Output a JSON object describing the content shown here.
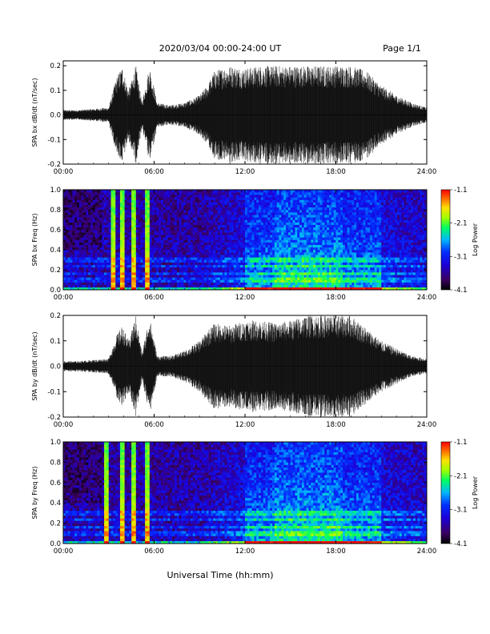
{
  "header": {
    "title": "2020/03/04  00:00-24:00 UT",
    "page": "Page 1/1"
  },
  "footer": {
    "xlabel": "Universal Time (hh:mm)"
  },
  "colors": {
    "trace": "#000000",
    "colormap": [
      "#000000",
      "#3a0060",
      "#1c00d8",
      "#0030ff",
      "#00b8ff",
      "#00ff60",
      "#a0ff00",
      "#ffe000",
      "#ff6000",
      "#ff0000"
    ]
  },
  "chart_data": [
    {
      "type": "line",
      "id": "bx-waveform",
      "ylabel": "SPA bx dB/dt (nT/sec)",
      "xlim": [
        0,
        24
      ],
      "ylim": [
        -0.2,
        0.22
      ],
      "xticks": [
        "00:00",
        "06:00",
        "12:00",
        "18:00",
        "24:00"
      ],
      "yticks": [
        "-0.2",
        "-0.1",
        "0.0",
        "0.1",
        "0.2"
      ],
      "ytick_values": [
        -0.2,
        -0.1,
        0.0,
        0.1,
        0.2
      ],
      "envelope": {
        "x": [
          0,
          1,
          2,
          3,
          3.5,
          3.9,
          4.3,
          4.8,
          5.2,
          5.7,
          6.2,
          7,
          8,
          9,
          9.5,
          10,
          11,
          12,
          13,
          14,
          15,
          16,
          17,
          18,
          19,
          20,
          21,
          22,
          23,
          24
        ],
        "amp": [
          0.02,
          0.02,
          0.025,
          0.03,
          0.15,
          0.2,
          0.1,
          0.2,
          0.05,
          0.2,
          0.05,
          0.04,
          0.05,
          0.08,
          0.12,
          0.18,
          0.2,
          0.19,
          0.2,
          0.2,
          0.2,
          0.2,
          0.2,
          0.2,
          0.2,
          0.18,
          0.12,
          0.08,
          0.05,
          0.03
        ]
      }
    },
    {
      "type": "heatmap",
      "id": "bx-spectrogram",
      "ylabel": "SPA bx Freq (Hz)",
      "colorbar_label": "Log Power",
      "xlim": [
        0,
        24
      ],
      "ylim": [
        0,
        1.0
      ],
      "xticks": [
        "00:00",
        "06:00",
        "12:00",
        "18:00",
        "24:00"
      ],
      "yticks": [
        "0.0",
        "0.2",
        "0.4",
        "0.6",
        "0.8",
        "1.0"
      ],
      "ytick_values": [
        0,
        0.2,
        0.4,
        0.6,
        0.8,
        1.0
      ],
      "clim": [
        -4.1,
        -1.1
      ],
      "cticks": [
        "-1.1",
        "-2.1",
        "-3.1",
        "-4.1"
      ],
      "cticks_values": [
        -1.1,
        -2.1,
        -3.1,
        -4.1
      ],
      "bursts": [
        3.3,
        3.9,
        4.6,
        5.6
      ],
      "lines_hz": [
        0.1,
        0.17,
        0.23,
        0.3
      ]
    },
    {
      "type": "line",
      "id": "by-waveform",
      "ylabel": "SPA by dB/dt (nT/sec)",
      "xlim": [
        0,
        24
      ],
      "ylim": [
        -0.2,
        0.2
      ],
      "xticks": [
        "00:00",
        "06:00",
        "12:00",
        "18:00",
        "24:00"
      ],
      "yticks": [
        "-0.2",
        "-0.1",
        "0.0",
        "0.1",
        "0.2"
      ],
      "ytick_values": [
        -0.2,
        -0.1,
        0.0,
        0.1,
        0.2
      ],
      "envelope": {
        "x": [
          0,
          1,
          2,
          3,
          3.5,
          3.9,
          4.3,
          4.8,
          5.2,
          5.7,
          6.2,
          7,
          8,
          9,
          9.5,
          10,
          11,
          12,
          13,
          14,
          15,
          16,
          17,
          18,
          19,
          20,
          21,
          22,
          23,
          24
        ],
        "amp": [
          0.02,
          0.02,
          0.025,
          0.03,
          0.12,
          0.16,
          0.1,
          0.2,
          0.05,
          0.2,
          0.04,
          0.04,
          0.06,
          0.1,
          0.14,
          0.17,
          0.16,
          0.18,
          0.18,
          0.17,
          0.18,
          0.2,
          0.2,
          0.2,
          0.2,
          0.15,
          0.1,
          0.07,
          0.04,
          0.03
        ]
      }
    },
    {
      "type": "heatmap",
      "id": "by-spectrogram",
      "ylabel": "SPA by Freq (Hz)",
      "colorbar_label": "Log Power",
      "xlim": [
        0,
        24
      ],
      "ylim": [
        0,
        1.0
      ],
      "xticks": [
        "00:00",
        "06:00",
        "12:00",
        "18:00",
        "24:00"
      ],
      "yticks": [
        "0.0",
        "0.2",
        "0.4",
        "0.6",
        "0.8",
        "1.0"
      ],
      "ytick_values": [
        0,
        0.2,
        0.4,
        0.6,
        0.8,
        1.0
      ],
      "clim": [
        -4.1,
        -1.1
      ],
      "cticks": [
        "-1.1",
        "-2.1",
        "-3.1",
        "-4.1"
      ],
      "cticks_values": [
        -1.1,
        -2.1,
        -3.1,
        -4.1
      ],
      "bursts": [
        2.9,
        3.9,
        4.6,
        5.6
      ],
      "lines_hz": [
        0.1,
        0.17,
        0.23,
        0.3
      ]
    }
  ]
}
